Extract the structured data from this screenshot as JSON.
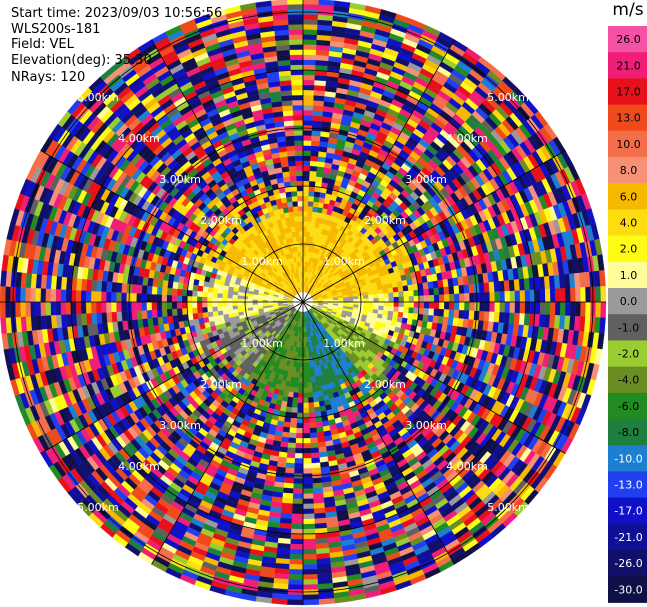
{
  "header": {
    "start_time": "Start time: 2023/09/03 10:56:56",
    "instrument": "WLS200s-181",
    "field": "Field: VEL",
    "elevation": "Elevation(deg): 35.30",
    "nrays": "NRays: 120"
  },
  "colorbar": {
    "unit": "m/s",
    "labels": [
      "26.0",
      "21.0",
      "17.0",
      "13.0",
      "10.0",
      "8.0",
      "6.0",
      "4.0",
      "2.0",
      "1.0",
      "0.0",
      "-1.0",
      "-2.0",
      "-4.0",
      "-6.0",
      "-8.0",
      "-10.0",
      "-13.0",
      "-17.0",
      "-21.0",
      "-26.0",
      "-30.0"
    ],
    "colors": [
      "#f652a5",
      "#f01e76",
      "#e8101a",
      "#f04a1c",
      "#f56e4a",
      "#f79175",
      "#f7b800",
      "#fddc10",
      "#fefb14",
      "#fefd9a",
      "#9a9a9a",
      "#606060",
      "#9acd32",
      "#6b8e23",
      "#228b22",
      "#1f7f3f",
      "#1e7fd0",
      "#2040f0",
      "#1010c8",
      "#101096",
      "#101068",
      "#101048"
    ]
  },
  "chart_data": {
    "type": "heatmap",
    "title": "",
    "field": "VEL",
    "units": "m/s",
    "nrays": 120,
    "elevation_deg": 35.3,
    "vmin": -30.0,
    "vmax": 26.0,
    "range_rings_km": [
      1.0,
      2.0,
      3.0,
      4.0,
      5.0
    ],
    "range_ring_labels": [
      "1.00km",
      "2.00km",
      "3.00km",
      "4.00km",
      "5.00km"
    ],
    "clean_max_range_km": 1.6,
    "clean_sectors": [
      {
        "azimuth_from_deg": 30,
        "azimuth_to_deg": 85,
        "velocity_ms": 6.0
      },
      {
        "azimuth_from_deg": 85,
        "azimuth_to_deg": 115,
        "velocity_ms": 1.5
      },
      {
        "azimuth_from_deg": 115,
        "azimuth_to_deg": 140,
        "velocity_ms": -2.0
      },
      {
        "azimuth_from_deg": 140,
        "azimuth_to_deg": 175,
        "velocity_ms": -8.0
      },
      {
        "azimuth_from_deg": 175,
        "azimuth_to_deg": 215,
        "velocity_ms": -4.0
      },
      {
        "azimuth_from_deg": 215,
        "azimuth_to_deg": 255,
        "velocity_ms": -0.5
      },
      {
        "azimuth_from_deg": 255,
        "azimuth_to_deg": 290,
        "velocity_ms": 1.5
      },
      {
        "azimuth_from_deg": 290,
        "azimuth_to_deg": 345,
        "velocity_ms": 6.0
      }
    ],
    "noise_beyond_range": "random full-scale values",
    "grid": true
  }
}
